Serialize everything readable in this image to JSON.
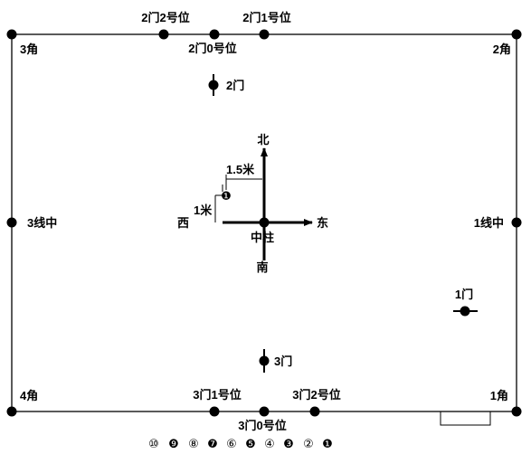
{
  "corners": {
    "c1": "1角",
    "c2": "2角",
    "c3": "3角",
    "c4": "4角"
  },
  "top_edge": {
    "pos2": "2门2号位",
    "pos1": "2门1号位",
    "pos0": "2门0号位"
  },
  "bottom_edge": {
    "pos1": "3门1号位",
    "pos2": "3门2号位",
    "pos0": "3门0号位"
  },
  "side_mid": {
    "left": "3线中",
    "right": "1线中"
  },
  "doors": {
    "d1": "1门",
    "d2": "2门",
    "d3": "3门"
  },
  "center": {
    "label": "中柱",
    "north": "北",
    "south": "南",
    "east": "东",
    "west": "西",
    "marker": "❶",
    "dist_x": "1.5米",
    "dist_y": "1米"
  },
  "sequence": [
    "⑩",
    "❾",
    "⑧",
    "❼",
    "⑥",
    "❺",
    "④",
    "❸",
    "②",
    "❶"
  ],
  "colors": {
    "stroke": "#000000",
    "background": "#ffffff"
  }
}
